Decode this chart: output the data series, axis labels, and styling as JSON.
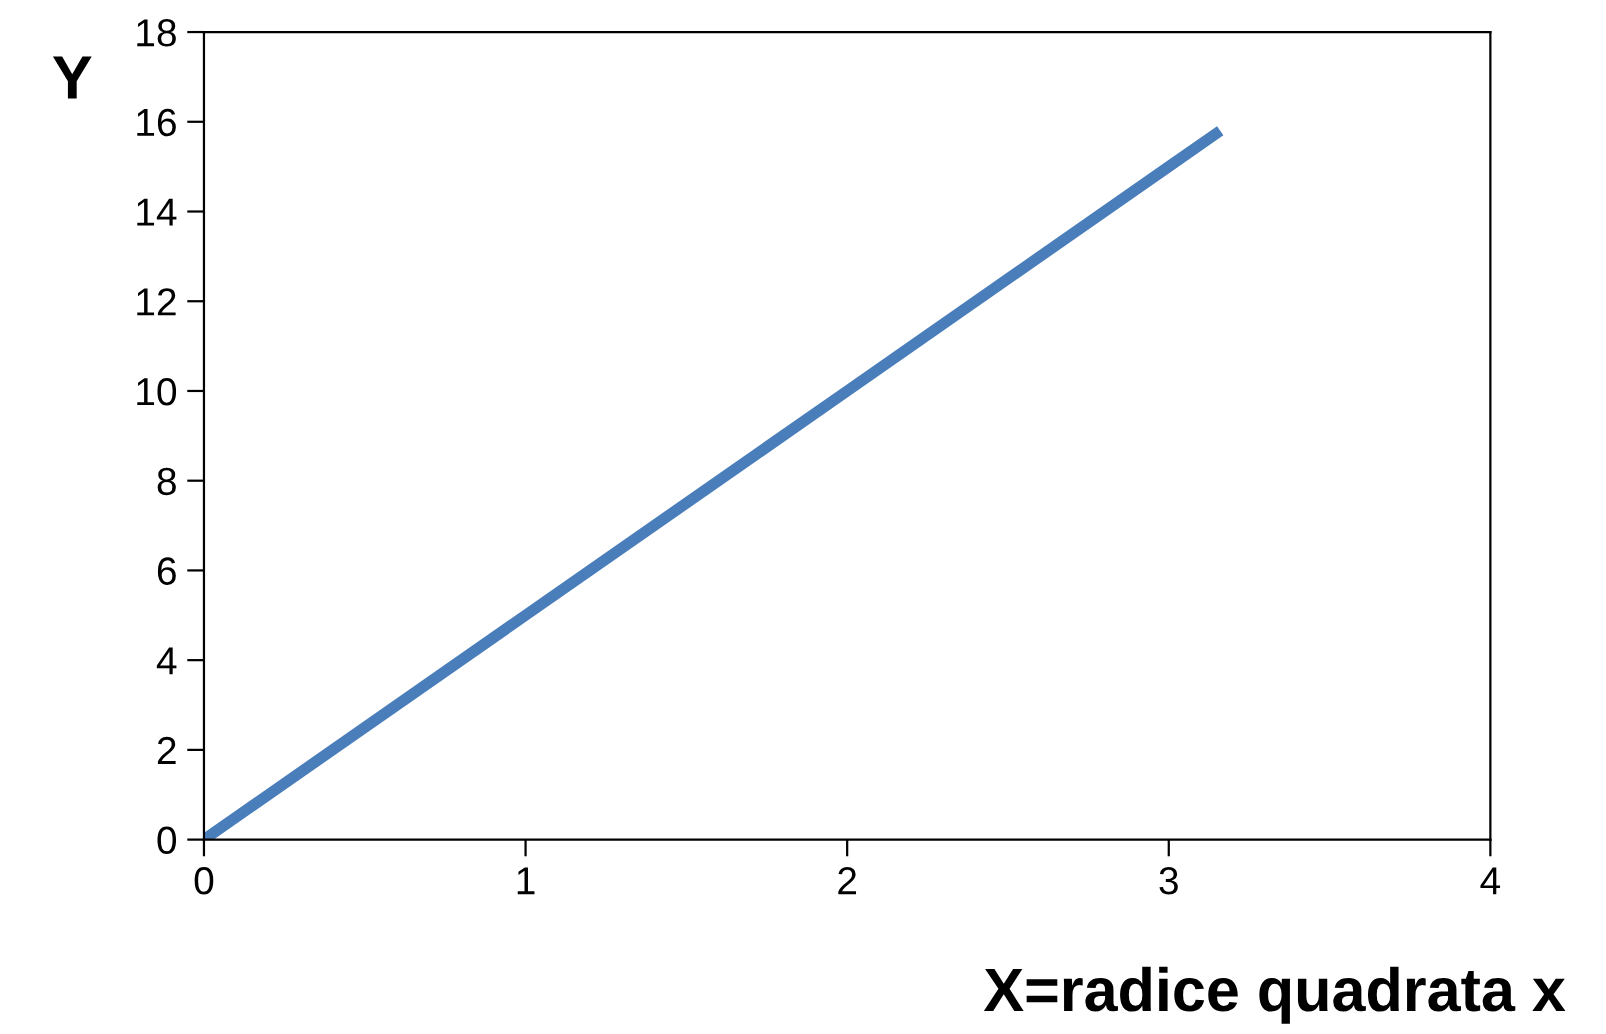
{
  "chart_data": {
    "type": "line",
    "xlabel": "X=radice quadrata x",
    "ylabel": "Y",
    "series": [
      {
        "color": "#4a7ebb",
        "x": [
          0,
          1,
          2,
          3,
          3.16
        ],
        "values": [
          0,
          5,
          10,
          15,
          15.8
        ]
      }
    ],
    "xlim": [
      0,
      4
    ],
    "xticks": [
      0,
      1,
      2,
      3,
      4
    ],
    "ylim": [
      0,
      18
    ],
    "yticks": [
      0,
      2,
      4,
      6,
      8,
      10,
      12,
      14,
      16,
      18
    ],
    "grid": false,
    "legend": false,
    "marker": "none",
    "line_style": "solid"
  }
}
